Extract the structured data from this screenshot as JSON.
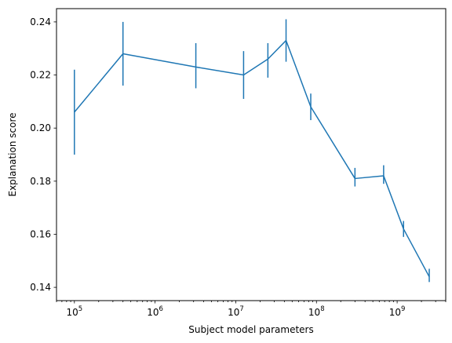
{
  "chart_data": {
    "type": "line",
    "title": "",
    "xlabel": "Subject model parameters",
    "ylabel": "Explanation score",
    "x_scale": "log",
    "xlim": [
      60000,
      4000000000
    ],
    "ylim": [
      0.135,
      0.245
    ],
    "grid": false,
    "color": "#1f77b4",
    "x_ticks": [
      {
        "value": 100000,
        "base": "10",
        "exp": "5"
      },
      {
        "value": 1000000,
        "base": "10",
        "exp": "6"
      },
      {
        "value": 10000000,
        "base": "10",
        "exp": "7"
      },
      {
        "value": 100000000,
        "base": "10",
        "exp": "8"
      },
      {
        "value": 1000000000,
        "base": "10",
        "exp": "9"
      }
    ],
    "y_ticks": [
      {
        "value": 0.14,
        "label": "0.14"
      },
      {
        "value": 0.16,
        "label": "0.16"
      },
      {
        "value": 0.18,
        "label": "0.18"
      },
      {
        "value": 0.2,
        "label": "0.20"
      },
      {
        "value": 0.22,
        "label": "0.22"
      },
      {
        "value": 0.24,
        "label": "0.24"
      }
    ],
    "points": [
      {
        "x": 100000,
        "y": 0.206,
        "err_low": 0.19,
        "err_high": 0.222
      },
      {
        "x": 400000,
        "y": 0.228,
        "err_low": 0.216,
        "err_high": 0.24
      },
      {
        "x": 3200000,
        "y": 0.223,
        "err_low": 0.215,
        "err_high": 0.232
      },
      {
        "x": 12500000,
        "y": 0.22,
        "err_low": 0.211,
        "err_high": 0.229
      },
      {
        "x": 25000000,
        "y": 0.226,
        "err_low": 0.219,
        "err_high": 0.232
      },
      {
        "x": 42000000,
        "y": 0.233,
        "err_low": 0.225,
        "err_high": 0.241
      },
      {
        "x": 85000000,
        "y": 0.208,
        "err_low": 0.203,
        "err_high": 0.213
      },
      {
        "x": 300000000,
        "y": 0.181,
        "err_low": 0.178,
        "err_high": 0.185
      },
      {
        "x": 680000000,
        "y": 0.182,
        "err_low": 0.179,
        "err_high": 0.186
      },
      {
        "x": 1200000000,
        "y": 0.162,
        "err_low": 0.159,
        "err_high": 0.165
      },
      {
        "x": 2500000000,
        "y": 0.144,
        "err_low": 0.142,
        "err_high": 0.147
      }
    ]
  }
}
